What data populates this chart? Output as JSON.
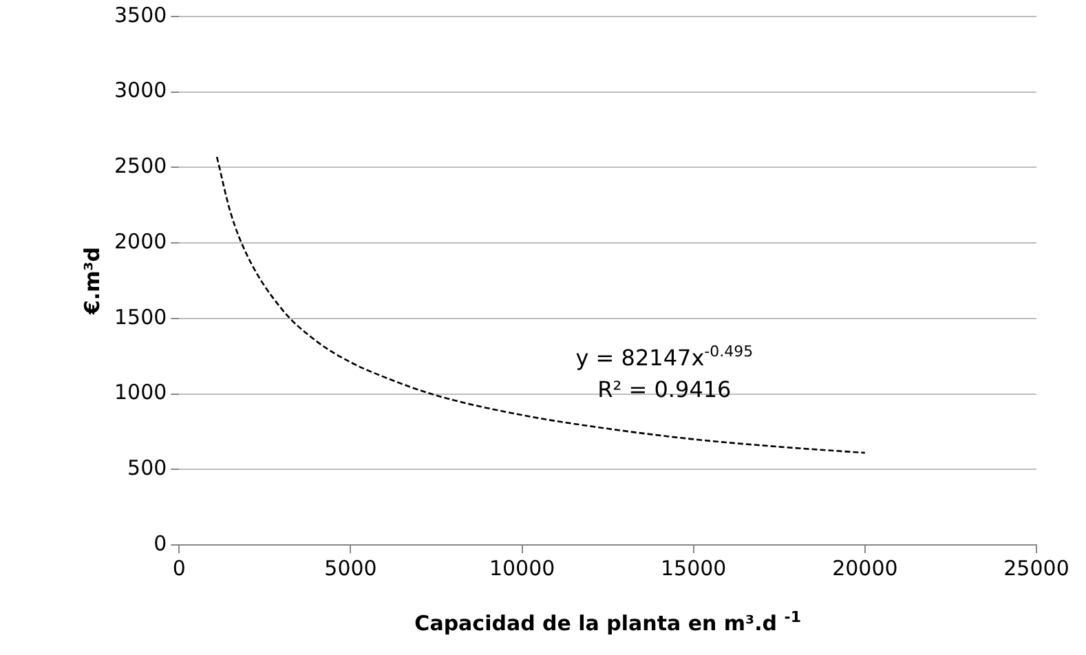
{
  "chart_data": {
    "type": "line",
    "xlabel": "Capacidad de la planta en m³.d $^{-1}$",
    "ylabel": "€.m³d",
    "x": [
      1100,
      1500,
      2000,
      3000,
      4000,
      5000,
      6000,
      7500,
      10000,
      12500,
      15000,
      17500,
      20000
    ],
    "series": [
      {
        "color": "#000000",
        "values": [
          2570,
          2200,
          1910,
          1560,
          1350,
          1210,
          1110,
          990,
          860,
          770,
          700,
          650,
          610
        ]
      }
    ],
    "xlim": [
      0,
      25000
    ],
    "xticks": [
      0,
      5000,
      10000,
      15000,
      20000,
      25000
    ],
    "ylim": [
      0,
      3500
    ],
    "yticks": [
      0,
      500,
      1000,
      1500,
      2000,
      2500,
      3000,
      3500
    ],
    "grid": "y",
    "legend": false,
    "marker": "none",
    "line_style": "dashed",
    "annotations": [
      "y = 82147x$^{-0.495}$",
      "R² = 0.9416"
    ]
  }
}
